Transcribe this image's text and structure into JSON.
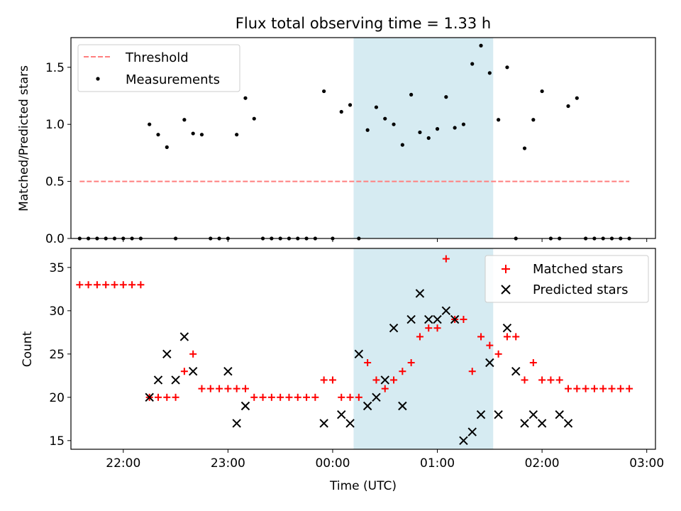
{
  "chart_data": [
    {
      "type": "scatter",
      "title": "Flux total observing time = 1.33 h",
      "xlabel": "",
      "ylabel": "Matched/Predicted stars",
      "xlim": [
        "21:30",
        "03:05"
      ],
      "ylim": [
        0,
        1.76
      ],
      "yticks": [
        "0.0",
        "0.5",
        "1.0",
        "1.5"
      ],
      "xticks": [
        "22:00",
        "23:00",
        "00:00",
        "01:00",
        "02:00",
        "03:00"
      ],
      "legend_position": "upper-left",
      "shaded_region": [
        "00:12",
        "01:32"
      ],
      "shaded_color": "#add8e6",
      "series": [
        {
          "name": "Threshold",
          "style": "dashed-line",
          "color": "#ff7f7f",
          "x": [
            "21:35",
            "02:50"
          ],
          "y": [
            0.5,
            0.5
          ]
        },
        {
          "name": "Measurements",
          "style": "dot",
          "color": "#000000",
          "x": [
            "21:35",
            "21:40",
            "21:45",
            "21:50",
            "21:55",
            "22:00",
            "22:05",
            "22:10",
            "22:15",
            "22:20",
            "22:25",
            "22:30",
            "22:35",
            "22:40",
            "22:45",
            "22:50",
            "22:55",
            "23:00",
            "23:05",
            "23:10",
            "23:15",
            "23:20",
            "23:25",
            "23:30",
            "23:35",
            "23:40",
            "23:45",
            "23:50",
            "23:55",
            "00:00",
            "00:05",
            "00:10",
            "00:15",
            "00:20",
            "00:25",
            "00:30",
            "00:35",
            "00:40",
            "00:45",
            "00:50",
            "00:55",
            "01:00",
            "01:05",
            "01:10",
            "01:15",
            "01:20",
            "01:25",
            "01:30",
            "01:35",
            "01:40",
            "01:45",
            "01:50",
            "01:55",
            "02:00",
            "02:05",
            "02:10",
            "02:15",
            "02:20",
            "02:25",
            "02:30",
            "02:35",
            "02:40",
            "02:45",
            "02:50"
          ],
          "y": [
            0,
            0,
            0,
            0,
            0,
            0,
            0,
            0,
            1.0,
            0.91,
            0.8,
            0,
            1.04,
            0.92,
            0.91,
            0,
            0,
            0,
            0.91,
            1.23,
            1.05,
            0,
            0,
            0,
            0,
            0,
            0,
            0,
            1.29,
            0,
            1.11,
            1.17,
            0,
            0.95,
            1.15,
            1.05,
            1.0,
            0.82,
            1.26,
            0.93,
            0.88,
            0.96,
            1.24,
            0.97,
            1.0,
            1.53,
            1.69,
            1.45,
            1.04,
            1.5,
            0,
            0.79,
            1.04,
            1.29,
            0,
            0,
            1.16,
            1.23,
            0,
            0,
            0,
            0,
            0,
            0
          ]
        }
      ]
    },
    {
      "type": "scatter",
      "title": "",
      "xlabel": "Time (UTC)",
      "ylabel": "Count",
      "xlim": [
        "21:30",
        "03:05"
      ],
      "ylim": [
        14,
        37.2
      ],
      "yticks": [
        "15",
        "20",
        "25",
        "30",
        "35"
      ],
      "xticks": [
        "22:00",
        "23:00",
        "00:00",
        "01:00",
        "02:00",
        "03:00"
      ],
      "legend_position": "upper-right",
      "shaded_region": [
        "00:12",
        "01:32"
      ],
      "shaded_color": "#add8e6",
      "series": [
        {
          "name": "Matched stars",
          "style": "plus",
          "color": "#ff0000",
          "x": [
            "21:35",
            "21:40",
            "21:45",
            "21:50",
            "21:55",
            "22:00",
            "22:05",
            "22:10",
            "22:15",
            "22:20",
            "22:25",
            "22:30",
            "22:35",
            "22:40",
            "22:45",
            "22:50",
            "22:55",
            "23:00",
            "23:05",
            "23:10",
            "23:15",
            "23:20",
            "23:25",
            "23:30",
            "23:35",
            "23:40",
            "23:45",
            "23:50",
            "23:55",
            "00:00",
            "00:05",
            "00:10",
            "00:15",
            "00:20",
            "00:25",
            "00:30",
            "00:35",
            "00:40",
            "00:45",
            "00:50",
            "00:55",
            "01:00",
            "01:05",
            "01:10",
            "01:15",
            "01:20",
            "01:25",
            "01:30",
            "01:35",
            "01:40",
            "01:45",
            "01:50",
            "01:55",
            "02:00",
            "02:05",
            "02:10",
            "02:15",
            "02:20",
            "02:25",
            "02:30",
            "02:35",
            "02:40",
            "02:45",
            "02:50"
          ],
          "y": [
            33,
            33,
            33,
            33,
            33,
            33,
            33,
            33,
            20,
            20,
            20,
            20,
            23,
            25,
            21,
            21,
            21,
            21,
            21,
            21,
            20,
            20,
            20,
            20,
            20,
            20,
            20,
            20,
            22,
            22,
            20,
            20,
            20,
            24,
            22,
            21,
            22,
            23,
            24,
            27,
            28,
            28,
            36,
            29,
            29,
            23,
            27,
            26,
            25,
            27,
            27,
            22,
            24,
            22,
            22,
            22,
            21,
            21,
            21,
            21,
            21,
            21,
            21,
            21
          ]
        },
        {
          "name": "Predicted stars",
          "style": "x",
          "color": "#000000",
          "x": [
            "22:15",
            "22:20",
            "22:25",
            "22:30",
            "22:35",
            "22:40",
            "23:00",
            "23:05",
            "23:10",
            "23:55",
            "00:05",
            "00:10",
            "00:15",
            "00:20",
            "00:25",
            "00:30",
            "00:35",
            "00:40",
            "00:45",
            "00:50",
            "00:55",
            "01:00",
            "01:05",
            "01:10",
            "01:15",
            "01:20",
            "01:25",
            "01:30",
            "01:35",
            "01:40",
            "01:45",
            "01:50",
            "01:55",
            "02:00",
            "02:10",
            "02:15"
          ],
          "y": [
            20,
            22,
            25,
            22,
            27,
            23,
            23,
            17,
            19,
            17,
            18,
            17,
            25,
            19,
            20,
            22,
            28,
            19,
            29,
            32,
            29,
            29,
            30,
            29,
            15,
            16,
            18,
            24,
            18,
            28,
            23,
            17,
            18,
            17,
            18,
            17
          ]
        }
      ]
    }
  ]
}
